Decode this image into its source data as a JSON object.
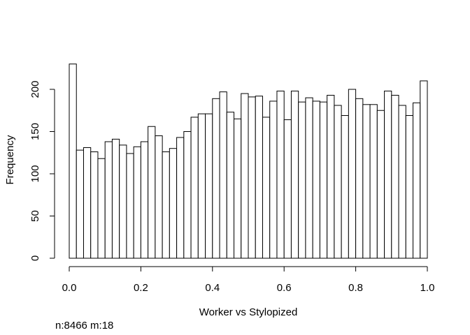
{
  "chart_data": {
    "type": "bar",
    "title": "",
    "xlabel": "Worker vs Stylopized",
    "ylabel": "Frequency",
    "xlim": [
      0,
      1
    ],
    "ylim": [
      0,
      230
    ],
    "bin_width": 0.02,
    "x_ticks": [
      "0.0",
      "0.2",
      "0.4",
      "0.6",
      "0.8",
      "1.0"
    ],
    "y_ticks": [
      "0",
      "50",
      "100",
      "150",
      "200"
    ],
    "grid": false,
    "legend": "none",
    "bin_starts": [
      0.0,
      0.02,
      0.04,
      0.06,
      0.08,
      0.1,
      0.12,
      0.14,
      0.16,
      0.18,
      0.2,
      0.22,
      0.24,
      0.26,
      0.28,
      0.3,
      0.32,
      0.34,
      0.36,
      0.38,
      0.4,
      0.42,
      0.44,
      0.46,
      0.48,
      0.5,
      0.52,
      0.54,
      0.56,
      0.58,
      0.6,
      0.62,
      0.64,
      0.66,
      0.68,
      0.7,
      0.72,
      0.74,
      0.76,
      0.78,
      0.8,
      0.82,
      0.84,
      0.86,
      0.88,
      0.9,
      0.92,
      0.94,
      0.96,
      0.98
    ],
    "values": [
      230,
      128,
      131,
      126,
      118,
      138,
      141,
      134,
      124,
      132,
      138,
      156,
      145,
      126,
      130,
      143,
      150,
      167,
      171,
      171,
      189,
      197,
      173,
      165,
      195,
      191,
      192,
      167,
      186,
      198,
      164,
      198,
      185,
      190,
      186,
      185,
      193,
      181,
      169,
      200,
      189,
      182,
      182,
      175,
      198,
      193,
      181,
      169,
      184,
      210
    ]
  },
  "footnote": "n:8466 m:18"
}
